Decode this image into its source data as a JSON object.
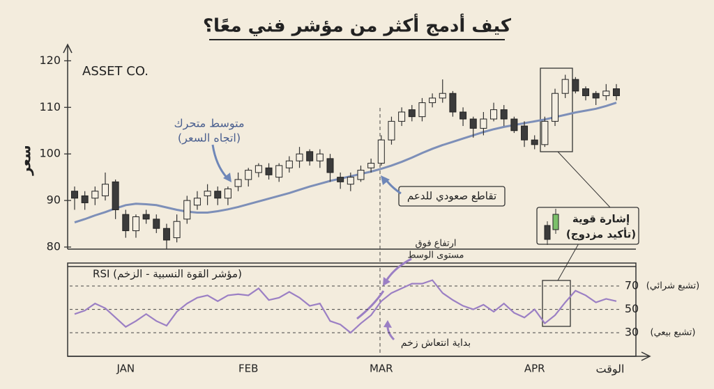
{
  "chart_data": [
    {
      "type": "candlestick",
      "title": "كيف أدمج أكثر من مؤشر فني معًا؟",
      "label": "ASSET CO.",
      "ylabel": "سعر",
      "ylim": [
        80,
        122
      ],
      "yticks": [
        80,
        90,
        100,
        110,
        120
      ],
      "up_color": "#f5efe2",
      "down_color": "#3b3b3b",
      "open": [
        92,
        91,
        90.5,
        91,
        94,
        87,
        83.5,
        87,
        86,
        84,
        82,
        86,
        89,
        91,
        92,
        90.5,
        93,
        94.5,
        96,
        97,
        95,
        97,
        98.5,
        100.5,
        98.5,
        99,
        95,
        93.5,
        94.5,
        97,
        98,
        103,
        107,
        109.5,
        108,
        111,
        112,
        113,
        109,
        107.5,
        105.5,
        107.5,
        109.5,
        107.5,
        106,
        103,
        102,
        107,
        113,
        116,
        114,
        113,
        112.5,
        114
      ],
      "high": [
        93,
        92,
        93,
        96,
        94.5,
        88,
        87,
        88,
        87,
        85,
        87,
        91,
        92,
        93.5,
        93,
        93,
        96,
        97,
        98,
        98,
        98,
        99.5,
        101.5,
        101,
        101,
        100,
        96,
        96,
        97.5,
        99,
        104,
        108,
        110,
        110.5,
        112,
        113,
        116,
        113.5,
        110,
        108,
        109,
        111,
        110.5,
        108,
        107,
        104,
        108,
        114,
        117,
        116.5,
        114.5,
        113.5,
        115,
        115
      ],
      "low": [
        88,
        88,
        89,
        90,
        86,
        82,
        82,
        85,
        83,
        79.5,
        81,
        85,
        88,
        89,
        89,
        89,
        92,
        93,
        95,
        94.5,
        94,
        96,
        97,
        97.5,
        97,
        94,
        92.5,
        92,
        94,
        96,
        97.5,
        102,
        106,
        107,
        107,
        110,
        111,
        108,
        106,
        103.5,
        104,
        107,
        106,
        104.5,
        101.5,
        101,
        101.5,
        106,
        112,
        113,
        111.5,
        110.5,
        111.5,
        111.5
      ],
      "close": [
        90.5,
        89.5,
        92,
        93.5,
        88,
        83.5,
        86.5,
        86,
        84,
        81.5,
        85.5,
        90,
        90.5,
        92,
        90.5,
        92.5,
        94.5,
        96.5,
        97.5,
        95.5,
        97.5,
        98.5,
        100,
        98.5,
        100,
        96,
        94,
        95,
        96.5,
        98,
        103,
        107,
        109,
        108,
        111,
        112,
        113,
        109,
        107.5,
        105.5,
        107.5,
        109.5,
        107.5,
        105,
        103,
        102,
        107,
        113,
        116,
        113.5,
        112.5,
        112,
        113.5,
        112.5
      ],
      "ma": {
        "color": "#7d8fb8",
        "values": [
          85.3,
          86,
          86.8,
          87.5,
          88.3,
          89,
          89.3,
          89.2,
          89,
          88.5,
          88,
          87.6,
          87.4,
          87.4,
          87.7,
          88.1,
          88.6,
          89.2,
          89.8,
          90.4,
          91,
          91.6,
          92.3,
          93,
          93.6,
          94.2,
          94.7,
          95.2,
          95.7,
          96.2,
          96.8,
          97.5,
          98.3,
          99.2,
          100.2,
          101.1,
          101.9,
          102.6,
          103.3,
          104,
          104.7,
          105.3,
          105.8,
          106.2,
          106.6,
          107,
          107.4,
          107.9,
          108.4,
          108.9,
          109.3,
          109.7,
          110.3,
          111
        ]
      },
      "annotations": [
        [
          "متوسط متحرك",
          "(اتجاه السعر)"
        ],
        [
          "تقاطع صعودي للدعم"
        ],
        [
          "إشارة قوية",
          "(تأكيد مزدوج)"
        ]
      ]
    },
    {
      "type": "line",
      "title": "RSI (مؤشر القوة النسبية - الزخم)",
      "xlabel": "الوقت",
      "categories": [
        null,
        null,
        null,
        null,
        null,
        "JAN",
        null,
        null,
        null,
        null,
        null,
        null,
        null,
        null,
        null,
        null,
        null,
        "FEB",
        null,
        null,
        null,
        null,
        null,
        null,
        null,
        null,
        null,
        null,
        null,
        null,
        "MAR",
        null,
        null,
        null,
        null,
        null,
        null,
        null,
        null,
        null,
        null,
        null,
        null,
        null,
        null,
        "APR",
        null,
        null,
        null,
        null,
        null,
        null,
        null,
        null
      ],
      "values": [
        46,
        49,
        55,
        51,
        43,
        35,
        40,
        46,
        40,
        36,
        48,
        55,
        60,
        62,
        57,
        62,
        63,
        62,
        68,
        58,
        60,
        65,
        60,
        53,
        55,
        40,
        37,
        30,
        38,
        45,
        57,
        64,
        68,
        72,
        72,
        75,
        64,
        58,
        53,
        50,
        54,
        48,
        55,
        47,
        43,
        50,
        38,
        45,
        56,
        66,
        62,
        56,
        59,
        57
      ],
      "color": "#9b7fc4",
      "ylim": [
        11,
        85.5
      ],
      "yticks": [
        30,
        50,
        70
      ],
      "grid": true,
      "annotations": [
        [
          "(تشبع شرائي)"
        ],
        [
          "(تشبع بيعي)"
        ],
        [
          "ارتفاع فوق",
          "مستوى الوسط"
        ],
        [
          "بداية انتعاش زخم"
        ]
      ]
    }
  ]
}
